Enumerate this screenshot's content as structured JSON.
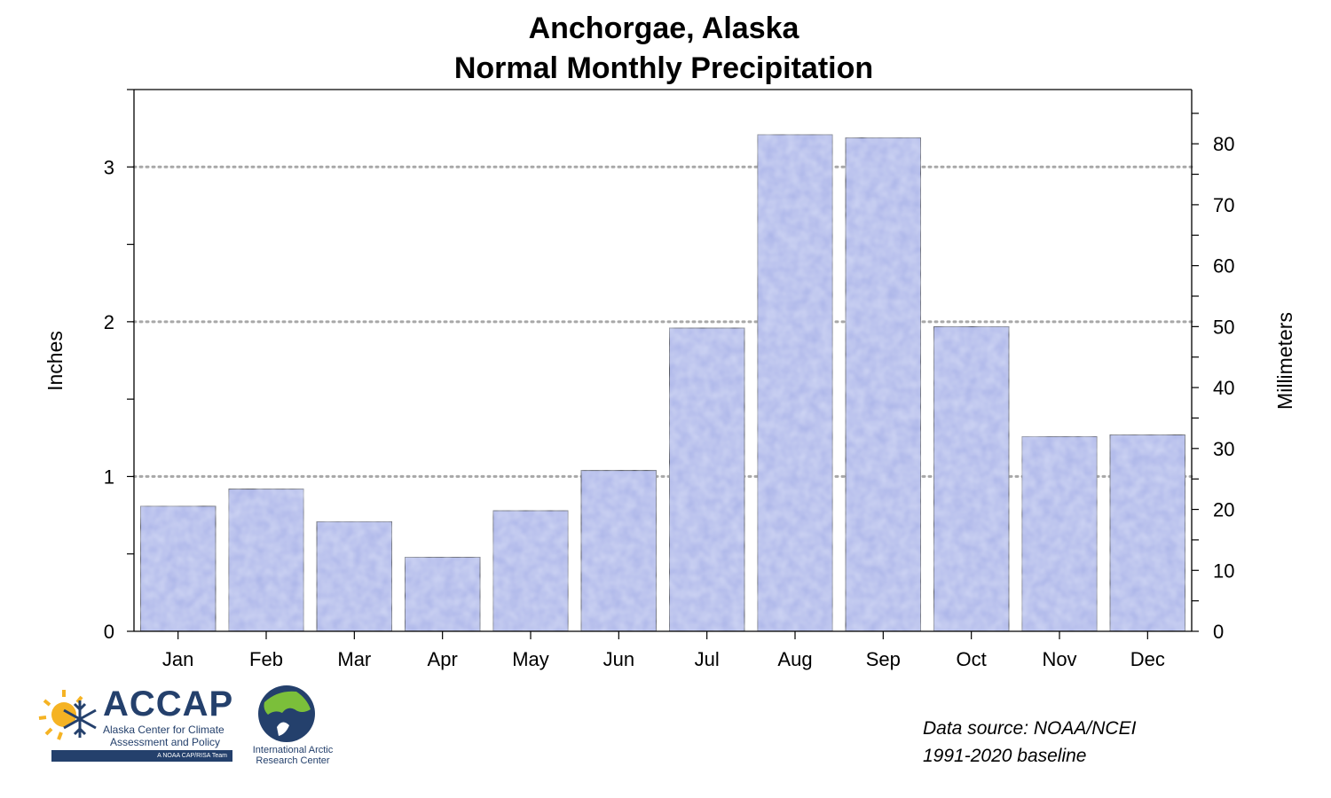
{
  "chart_data": {
    "type": "bar",
    "title": "Anchorgae, Alaska",
    "subtitle": "Normal Monthly Precipitation",
    "categories": [
      "Jan",
      "Feb",
      "Mar",
      "Apr",
      "May",
      "Jun",
      "Jul",
      "Aug",
      "Sep",
      "Oct",
      "Nov",
      "Dec"
    ],
    "values": [
      0.81,
      0.92,
      0.71,
      0.48,
      0.78,
      1.04,
      1.96,
      3.21,
      3.19,
      1.97,
      1.26,
      1.27
    ],
    "ylabel": "Inches",
    "ylabel_right": "Millimeters",
    "ylim": [
      0,
      3.5
    ],
    "y_ticks": [
      0,
      1,
      2,
      3
    ],
    "y_right_ticks": [
      0,
      10,
      20,
      30,
      40,
      50,
      60,
      70,
      80
    ],
    "grid": "horizontal dotted at major ticks",
    "bar_color": "#aab4e8"
  },
  "footer": {
    "source_line1": "Data source:  NOAA/NCEI",
    "source_line2": "1991-2020 baseline"
  },
  "logos": {
    "accap_name": "ACCAP",
    "accap_line1": "Alaska Center for Climate",
    "accap_line2": "Assessment and Policy",
    "accap_tag": "A NOAA CAP/RISA Team",
    "iarc_line1": "International Arctic",
    "iarc_line2": "Research Center"
  }
}
